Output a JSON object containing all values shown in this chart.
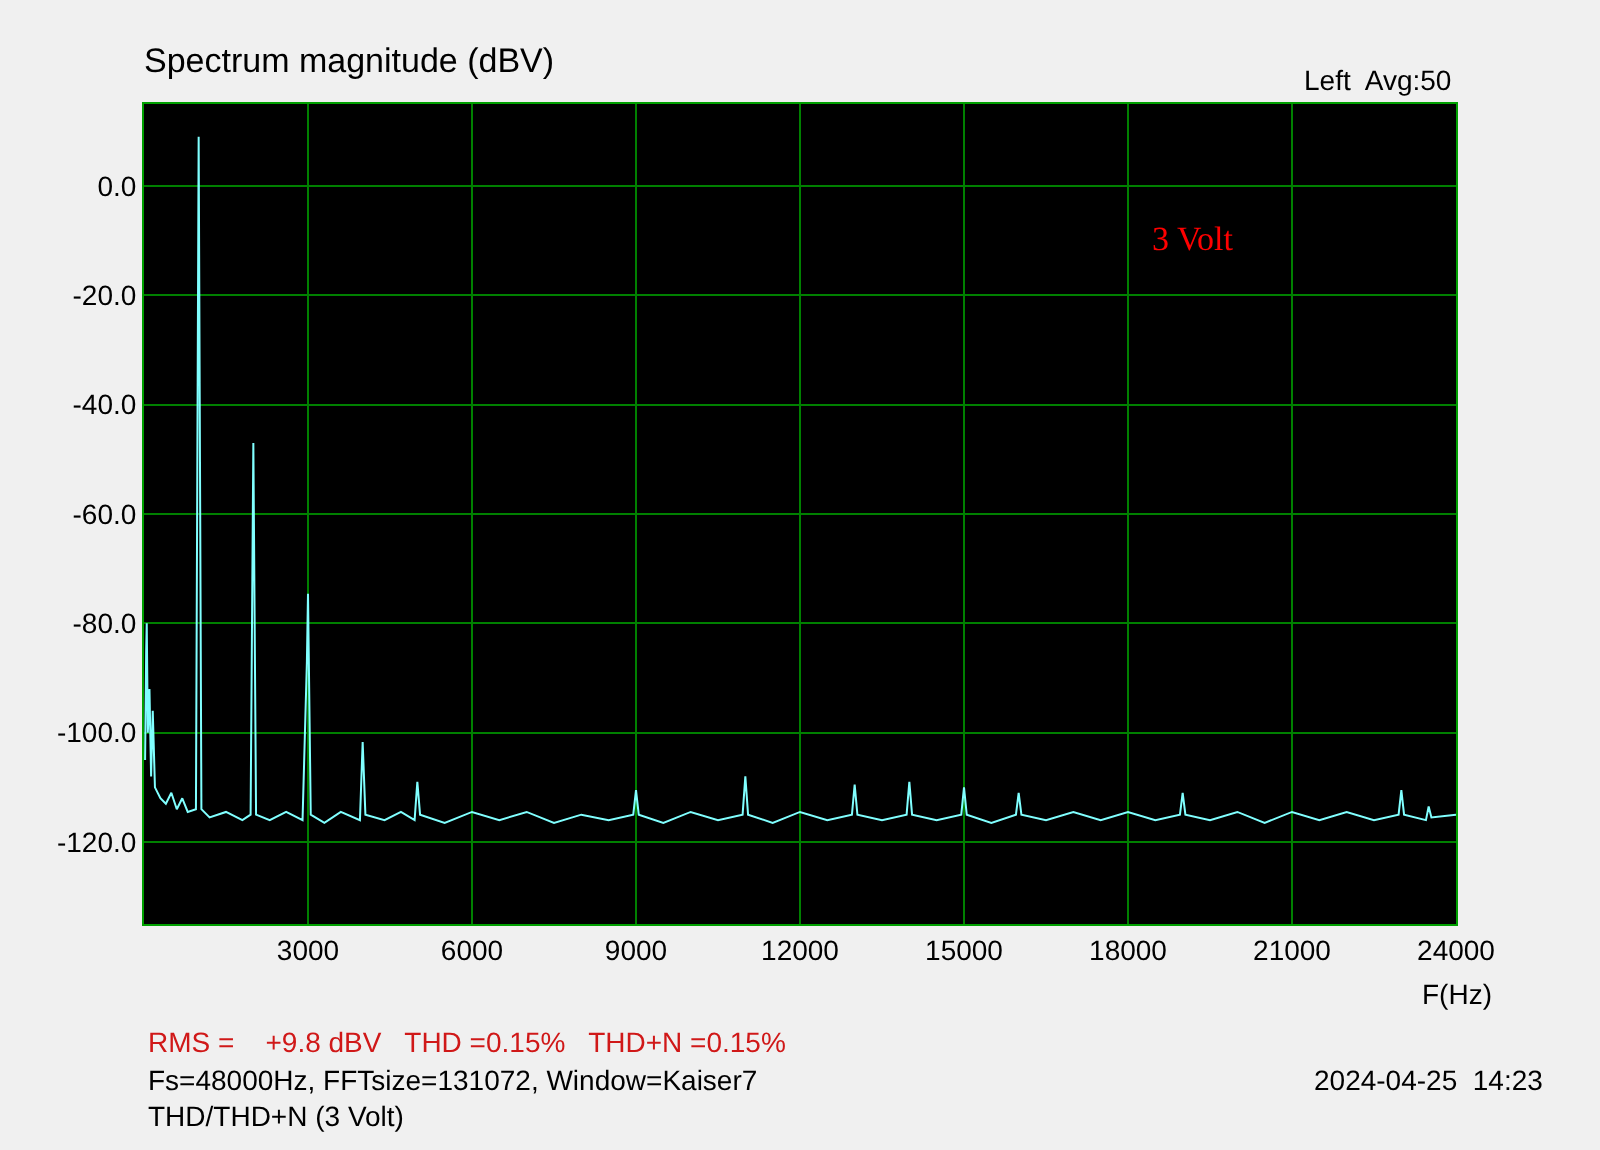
{
  "chart_data": {
    "type": "line",
    "title": "Spectrum magnitude (dBV)",
    "xlabel": "F(Hz)",
    "annotations": [
      "Left  Avg:50",
      "3 Volt",
      "RMS =    +9.8 dBV   THD =0.15%   THD+N =0.15%",
      "Fs=48000Hz, FFTsize=131072, Window=Kaiser7",
      "2024-04-25  14:23",
      "THD/THD+N (3 Volt)"
    ],
    "x": [
      20,
      40,
      50,
      70,
      100,
      130,
      160,
      200,
      300,
      400,
      500,
      600,
      700,
      800,
      950,
      1000,
      1050,
      1200,
      1500,
      1800,
      1950,
      2000,
      2050,
      2300,
      2600,
      2900,
      2980,
      3000,
      3050,
      3300,
      3600,
      3950,
      4000,
      4050,
      4400,
      4700,
      4950,
      5000,
      5050,
      5500,
      6000,
      6500,
      7000,
      7500,
      8000,
      8500,
      8950,
      9000,
      9050,
      9500,
      10000,
      10500,
      10950,
      11000,
      11050,
      11500,
      12000,
      12500,
      12950,
      13000,
      13050,
      13500,
      13950,
      14000,
      14050,
      14500,
      14950,
      15000,
      15050,
      15500,
      15950,
      16000,
      16050,
      16500,
      17000,
      17500,
      18000,
      18500,
      18950,
      19000,
      19050,
      19500,
      20000,
      20500,
      21000,
      21500,
      22000,
      22500,
      22950,
      23000,
      23050,
      23450,
      23500,
      23550,
      24000
    ],
    "series": [
      {
        "color": "#80ffff",
        "values": [
          -105,
          -85,
          -80,
          -100,
          -92,
          -108,
          -96,
          -110,
          -112,
          -113,
          -111,
          -114,
          -112,
          -114.5,
          -114,
          9,
          -114,
          -115.5,
          -114.5,
          -116,
          -115,
          -47,
          -115,
          -116,
          -114.5,
          -116,
          -87,
          -74.6,
          -115,
          -116.5,
          -114.5,
          -116,
          -101.7,
          -115,
          -116,
          -114.5,
          -116,
          -109,
          -115,
          -116.5,
          -114.5,
          -116,
          -114.5,
          -116.5,
          -115,
          -116,
          -115,
          -110.5,
          -115,
          -116.5,
          -114.5,
          -116,
          -115,
          -108,
          -115,
          -116.5,
          -114.5,
          -116,
          -115,
          -109.5,
          -115,
          -116,
          -115,
          -109,
          -115,
          -116,
          -115,
          -110,
          -115,
          -116.5,
          -115,
          -111,
          -115,
          -116,
          -114.5,
          -116,
          -114.5,
          -116,
          -115,
          -111,
          -115,
          -116,
          -114.5,
          -116.5,
          -114.5,
          -116,
          -114.5,
          -116,
          -115,
          -110.5,
          -115,
          -116,
          -113.5,
          -115.5,
          -115
        ]
      }
    ],
    "xlim": [
      0,
      24000
    ],
    "xticks": [
      3000,
      6000,
      9000,
      12000,
      15000,
      18000,
      21000,
      24000
    ],
    "ylim": [
      -135,
      15
    ],
    "yticks": [
      {
        "value": 0,
        "label": "0.0"
      },
      {
        "value": -20,
        "label": "-20.0"
      },
      {
        "value": -40,
        "label": "-40.0"
      },
      {
        "value": -60,
        "label": "-60.0"
      },
      {
        "value": -80,
        "label": "-80.0"
      },
      {
        "value": -100,
        "label": "-100.0"
      },
      {
        "value": -120,
        "label": "-120.0"
      }
    ],
    "grid": true,
    "marker": "none",
    "line_style": "solid"
  }
}
